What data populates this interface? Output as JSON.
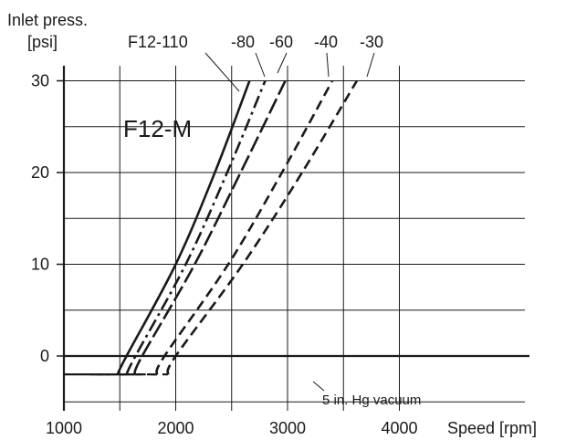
{
  "chart_data": {
    "type": "line",
    "title": "F12-M",
    "ylabel_line1": "Inlet press.",
    "ylabel_line2": "[psi]",
    "xlabel": "Speed [rpm]",
    "xlim": [
      1000,
      4000
    ],
    "ylim": [
      -2,
      30
    ],
    "x_ticks": [
      1000,
      2000,
      3000,
      4000
    ],
    "x_tick_labels": [
      "1000",
      "2000",
      "3000",
      "4000"
    ],
    "y_ticks": [
      0,
      10,
      20,
      30
    ],
    "y_tick_labels": [
      "0",
      "10",
      "20",
      "30"
    ],
    "grid": true,
    "annotation": "5 in. Hg vacuum",
    "floor_value": -2,
    "series": [
      {
        "name": "F12-110",
        "style": "solid",
        "points": [
          [
            1480,
            -2
          ],
          [
            1560,
            0
          ],
          [
            2000,
            10
          ],
          [
            2350,
            20
          ],
          [
            2660,
            30
          ]
        ]
      },
      {
        "name": "-80",
        "style": "dashdot",
        "points": [
          [
            1560,
            -2
          ],
          [
            1640,
            0
          ],
          [
            2090,
            10
          ],
          [
            2460,
            20
          ],
          [
            2800,
            30
          ]
        ]
      },
      {
        "name": "-60",
        "style": "longdash",
        "points": [
          [
            1630,
            -2
          ],
          [
            1700,
            0
          ],
          [
            2170,
            10
          ],
          [
            2580,
            20
          ],
          [
            2980,
            30
          ]
        ]
      },
      {
        "name": "-40",
        "style": "dashed",
        "points": [
          [
            1830,
            -2
          ],
          [
            1900,
            0
          ],
          [
            2470,
            10
          ],
          [
            2950,
            20
          ],
          [
            3400,
            30
          ]
        ]
      },
      {
        "name": "-30",
        "style": "dashed",
        "points": [
          [
            1930,
            -2
          ],
          [
            2000,
            0
          ],
          [
            2600,
            10
          ],
          [
            3130,
            20
          ],
          [
            3620,
            30
          ]
        ]
      }
    ],
    "colors": {
      "lines": "#1a1a1a",
      "grid": "#1a1a1a"
    }
  }
}
